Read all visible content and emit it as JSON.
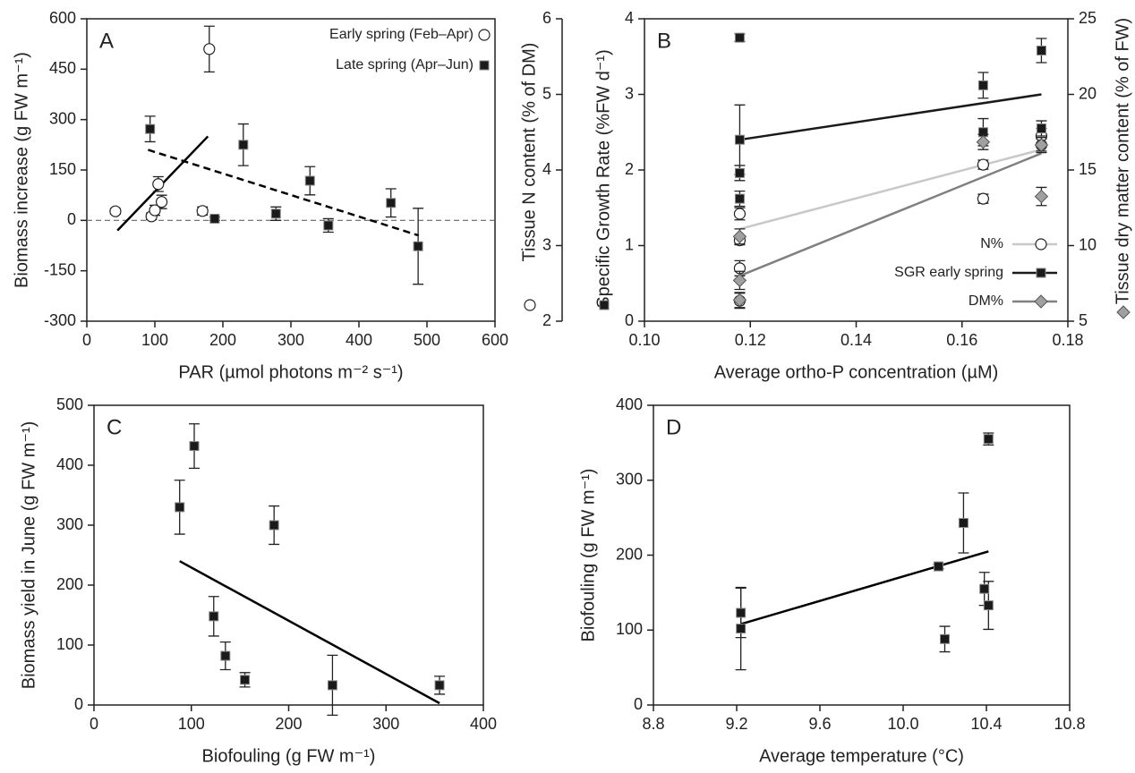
{
  "chart_data": [
    {
      "type": "scatter",
      "label": "A",
      "xlabel": "PAR (µmol photons m⁻² s⁻¹)",
      "ylabel": "Biomass increase (g FW m⁻¹)",
      "xlim": [
        0,
        600
      ],
      "xticks": [
        0,
        100,
        200,
        300,
        400,
        500,
        600
      ],
      "ylim": [
        -300,
        600
      ],
      "yticks": [
        -300,
        -150,
        0,
        150,
        300,
        450,
        600
      ],
      "zero_line": true,
      "legend": "upper right",
      "series": [
        {
          "name": "Early spring (Feb–Apr)",
          "marker": "circle",
          "color": "#ffffff",
          "x": [
            42,
            95,
            100,
            105,
            110,
            170,
            180
          ],
          "values": [
            27,
            12,
            30,
            108,
            55,
            28,
            510
          ],
          "errors": [
            8,
            10,
            15,
            22,
            20,
            12,
            68
          ]
        },
        {
          "name": "Late spring (Apr–Jun)",
          "marker": "square",
          "color": "#1a1a1a",
          "x": [
            93,
            188,
            230,
            278,
            328,
            355,
            447,
            487
          ],
          "values": [
            272,
            5,
            225,
            20,
            118,
            -15,
            52,
            -77
          ],
          "errors": [
            38,
            5,
            62,
            20,
            42,
            20,
            42,
            113
          ]
        }
      ],
      "fits": [
        {
          "x": [
            45,
            178
          ],
          "values": [
            -30,
            250
          ],
          "style": "solid",
          "color": "#000000"
        },
        {
          "x": [
            90,
            488
          ],
          "values": [
            210,
            -45
          ],
          "style": "dashed",
          "color": "#000000"
        }
      ]
    },
    {
      "type": "scatter",
      "label": "B",
      "xlabel": "Average ortho-P concentration (µM)",
      "ylabel": "Specific Growth Rate (%FW d⁻¹)",
      "y2label": "Tissue dry matter content (% of FW)",
      "y3label": "Tissue N content (% of DM)",
      "xlim": [
        0.1,
        0.18
      ],
      "xticks": [
        {
          "value": 0.1,
          "label": "0.10"
        },
        {
          "value": 0.12,
          "label": "0.12"
        },
        {
          "value": 0.14,
          "label": "0.14"
        },
        {
          "value": 0.16,
          "label": "0.16"
        },
        {
          "value": 0.18,
          "label": "0.18"
        }
      ],
      "ylim": [
        0,
        4
      ],
      "yticks": [
        0,
        1,
        2,
        3,
        4
      ],
      "y2lim": [
        5,
        25
      ],
      "y2ticks": [
        5,
        10,
        15,
        20,
        25
      ],
      "y3lim": [
        2,
        6
      ],
      "y3ticks": [
        2,
        3,
        4,
        5,
        6
      ],
      "legend": "lower right",
      "series": [
        {
          "name": "N%",
          "axis": "y3",
          "marker": "circle",
          "color": "#ffffff",
          "line_color": "#c8c8c8",
          "x": [
            0.118,
            0.118,
            0.118,
            0.118,
            0.164,
            0.164,
            0.175,
            0.175
          ],
          "values": [
            3.42,
            3.07,
            2.7,
            2.27,
            4.07,
            3.62,
            4.45,
            4.33
          ],
          "errors": [
            0.08,
            0.06,
            0.1,
            0.1,
            0.06,
            0.06,
            0.1,
            0.08
          ]
        },
        {
          "name": "SGR early spring",
          "axis": "y",
          "marker": "square",
          "color": "#1a1a1a",
          "line_color": "#1a1a1a",
          "x": [
            0.118,
            0.118,
            0.118,
            0.118,
            0.164,
            0.164,
            0.175,
            0.175
          ],
          "values": [
            3.75,
            2.4,
            1.96,
            1.62,
            3.12,
            2.5,
            3.58,
            2.55
          ],
          "errors": [
            0.05,
            0.46,
            0.1,
            0.1,
            0.17,
            0.18,
            0.16,
            0.1
          ]
        },
        {
          "name": "DM%",
          "axis": "y2",
          "marker": "diamond",
          "color": "#a0a0a0",
          "line_color": "#808080",
          "x": [
            0.118,
            0.118,
            0.118,
            0.164,
            0.175,
            0.175
          ],
          "values": [
            10.6,
            7.7,
            6.4,
            16.85,
            16.65,
            13.25
          ],
          "errors": [
            0.5,
            0.6,
            0.5,
            0.5,
            0.5,
            0.6
          ]
        }
      ],
      "fits": [
        {
          "axis": "y3",
          "x": [
            0.118,
            0.175
          ],
          "values": [
            3.22,
            4.27
          ],
          "style": "solid",
          "color": "#c8c8c8"
        },
        {
          "axis": "y",
          "x": [
            0.118,
            0.175
          ],
          "values": [
            2.4,
            3.0
          ],
          "style": "solid",
          "color": "#1a1a1a"
        },
        {
          "axis": "y2",
          "x": [
            0.118,
            0.175
          ],
          "values": [
            8.0,
            16.1
          ],
          "style": "solid",
          "color": "#808080"
        }
      ]
    },
    {
      "type": "scatter",
      "label": "C",
      "xlabel": "Biofouling (g FW m⁻¹)",
      "ylabel": "Biomass yield in June (g FW m⁻¹)",
      "xlim": [
        0,
        400
      ],
      "xticks": [
        0,
        100,
        200,
        300,
        400
      ],
      "ylim": [
        0,
        500
      ],
      "yticks": [
        0,
        100,
        200,
        300,
        400,
        500
      ],
      "series": [
        {
          "marker": "square",
          "color": "#1a1a1a",
          "x": [
            88,
            103,
            123,
            135,
            155,
            185,
            245,
            355
          ],
          "values": [
            330,
            432,
            148,
            82,
            42,
            300,
            33,
            33
          ],
          "errors": [
            45,
            37,
            33,
            23,
            12,
            32,
            50,
            15
          ]
        }
      ],
      "fits": [
        {
          "x": [
            88,
            355
          ],
          "values": [
            240,
            3
          ],
          "style": "solid",
          "color": "#000000"
        }
      ]
    },
    {
      "type": "scatter",
      "label": "D",
      "xlabel": "Average temperature (°C)",
      "ylabel": "Biofouling (g FW m⁻¹)",
      "xlim": [
        8.8,
        10.8
      ],
      "xticks": [
        8.8,
        9.2,
        9.6,
        {
          "value": 10.0,
          "label": "10.0"
        },
        10.4,
        10.8
      ],
      "ylim": [
        0,
        400
      ],
      "yticks": [
        0,
        100,
        200,
        300,
        400
      ],
      "series": [
        {
          "marker": "square",
          "color": "#1a1a1a",
          "x": [
            9.22,
            9.22,
            10.17,
            10.2,
            10.29,
            10.39,
            10.41,
            10.41
          ],
          "values": [
            123,
            102,
            185,
            88,
            243,
            155,
            133,
            355
          ],
          "errors": [
            33,
            55,
            3,
            17,
            40,
            22,
            32,
            8
          ]
        }
      ],
      "fits": [
        {
          "x": [
            9.22,
            10.41
          ],
          "values": [
            108,
            205
          ],
          "style": "solid",
          "color": "#000000"
        }
      ]
    }
  ]
}
